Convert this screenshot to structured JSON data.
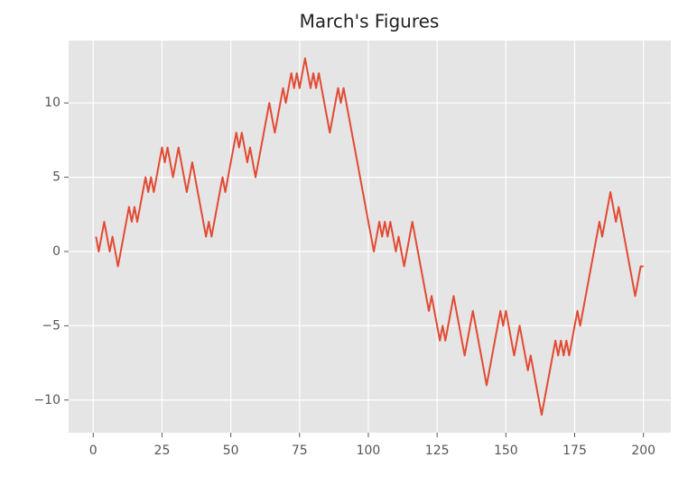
{
  "chart_data": {
    "type": "line",
    "title": "March's Figures",
    "x": [
      1,
      2,
      3,
      4,
      5,
      6,
      7,
      8,
      9,
      10,
      11,
      12,
      13,
      14,
      15,
      16,
      17,
      18,
      19,
      20,
      21,
      22,
      23,
      24,
      25,
      26,
      27,
      28,
      29,
      30,
      31,
      32,
      33,
      34,
      35,
      36,
      37,
      38,
      39,
      40,
      41,
      42,
      43,
      44,
      45,
      46,
      47,
      48,
      49,
      50,
      51,
      52,
      53,
      54,
      55,
      56,
      57,
      58,
      59,
      60,
      61,
      62,
      63,
      64,
      65,
      66,
      67,
      68,
      69,
      70,
      71,
      72,
      73,
      74,
      75,
      76,
      77,
      78,
      79,
      80,
      81,
      82,
      83,
      84,
      85,
      86,
      87,
      88,
      89,
      90,
      91,
      92,
      93,
      94,
      95,
      96,
      97,
      98,
      99,
      100,
      101,
      102,
      103,
      104,
      105,
      106,
      107,
      108,
      109,
      110,
      111,
      112,
      113,
      114,
      115,
      116,
      117,
      118,
      119,
      120,
      121,
      122,
      123,
      124,
      125,
      126,
      127,
      128,
      129,
      130,
      131,
      132,
      133,
      134,
      135,
      136,
      137,
      138,
      139,
      140,
      141,
      142,
      143,
      144,
      145,
      146,
      147,
      148,
      149,
      150,
      151,
      152,
      153,
      154,
      155,
      156,
      157,
      158,
      159,
      160,
      161,
      162,
      163,
      164,
      165,
      166,
      167,
      168,
      169,
      170,
      171,
      172,
      173,
      174,
      175,
      176,
      177,
      178,
      179,
      180,
      181,
      182,
      183,
      184,
      185,
      186,
      187,
      188,
      189,
      190,
      191,
      192,
      193,
      194,
      195,
      196,
      197,
      198,
      199,
      200
    ],
    "values": [
      1,
      0,
      1,
      2,
      1,
      0,
      1,
      0,
      -1,
      0,
      1,
      2,
      3,
      2,
      3,
      2,
      3,
      4,
      5,
      4,
      5,
      4,
      5,
      6,
      7,
      6,
      7,
      6,
      5,
      6,
      7,
      6,
      5,
      4,
      5,
      6,
      5,
      4,
      3,
      2,
      1,
      2,
      1,
      2,
      3,
      4,
      5,
      4,
      5,
      6,
      7,
      8,
      7,
      8,
      7,
      6,
      7,
      6,
      5,
      6,
      7,
      8,
      9,
      10,
      9,
      8,
      9,
      10,
      11,
      10,
      11,
      12,
      11,
      12,
      11,
      12,
      13,
      12,
      11,
      12,
      11,
      12,
      11,
      10,
      9,
      8,
      9,
      10,
      11,
      10,
      11,
      10,
      9,
      8,
      7,
      6,
      5,
      4,
      3,
      2,
      1,
      0,
      1,
      2,
      1,
      2,
      1,
      2,
      1,
      0,
      1,
      0,
      -1,
      0,
      1,
      2,
      1,
      0,
      -1,
      -2,
      -3,
      -4,
      -3,
      -4,
      -5,
      -6,
      -5,
      -6,
      -5,
      -4,
      -3,
      -4,
      -5,
      -6,
      -7,
      -6,
      -5,
      -4,
      -5,
      -6,
      -7,
      -8,
      -9,
      -8,
      -7,
      -6,
      -5,
      -4,
      -5,
      -4,
      -5,
      -6,
      -7,
      -6,
      -5,
      -6,
      -7,
      -8,
      -7,
      -8,
      -9,
      -10,
      -11,
      -10,
      -9,
      -8,
      -7,
      -6,
      -7,
      -6,
      -7,
      -6,
      -7,
      -6,
      -5,
      -4,
      -5,
      -4,
      -3,
      -2,
      -1,
      0,
      1,
      2,
      1,
      2,
      3,
      4,
      3,
      2,
      3,
      2,
      1,
      0,
      -1,
      -2,
      -3,
      -2,
      -1,
      -1
    ],
    "color": "#E24A33",
    "xlim": [
      -8.95,
      209.95
    ],
    "xticks": [
      0,
      25,
      50,
      75,
      100,
      125,
      150,
      175,
      200
    ],
    "ylim": [
      -12.2,
      14.2
    ],
    "yticks": [
      {
        "value": -10,
        "label": "−10"
      },
      {
        "value": -5,
        "label": "−5"
      },
      0,
      5,
      10
    ],
    "grid": true
  }
}
